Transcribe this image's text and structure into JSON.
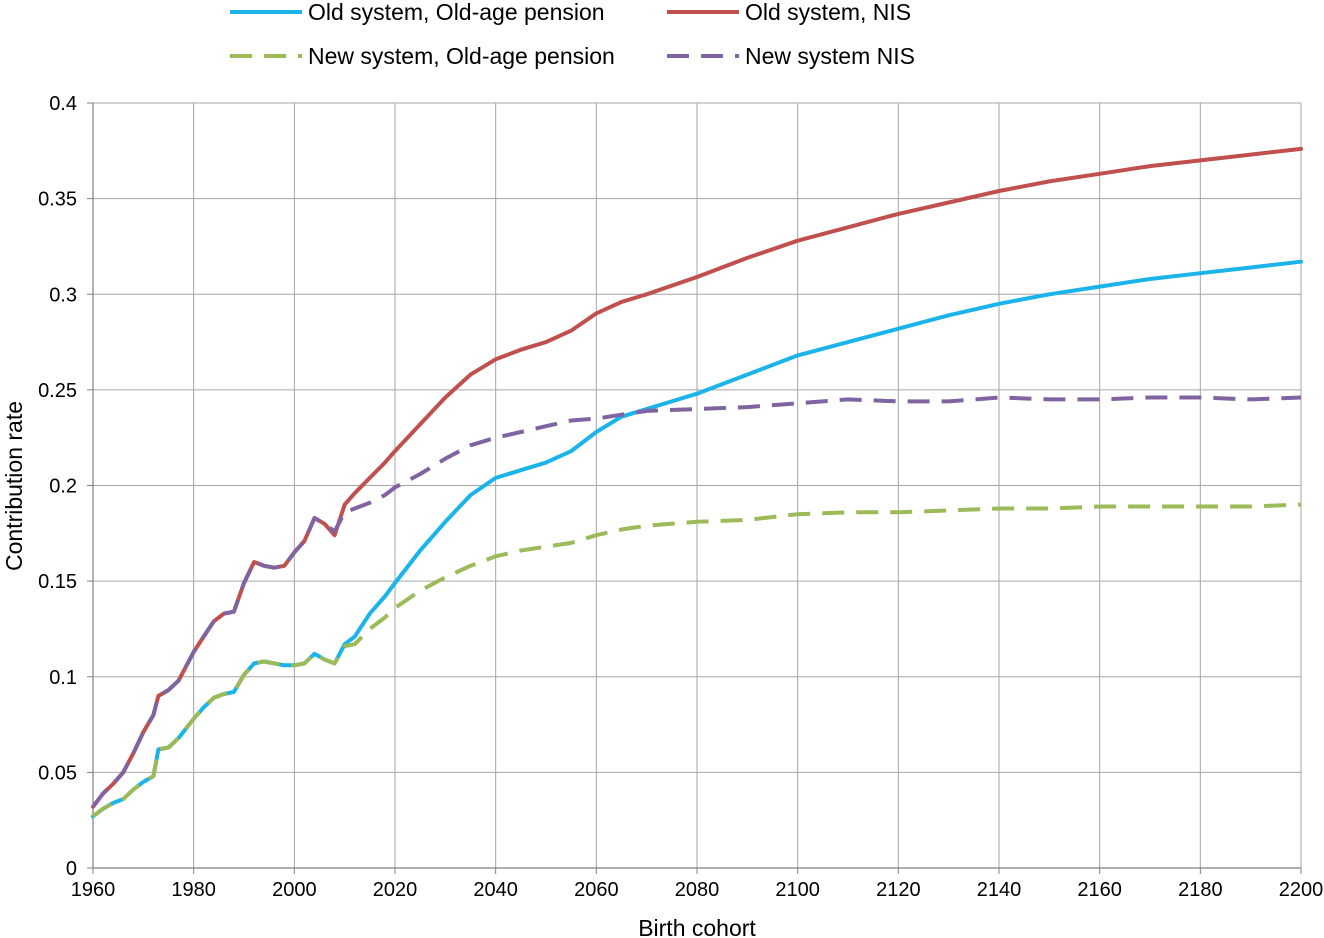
{
  "chart_data": {
    "type": "line",
    "xlabel": "Birth cohort",
    "ylabel": "Contribution rate",
    "xlim": [
      1960,
      2200
    ],
    "ylim": [
      0,
      0.4
    ],
    "x_ticks": [
      1960,
      1980,
      2000,
      2020,
      2040,
      2060,
      2080,
      2100,
      2120,
      2140,
      2160,
      2180,
      2200
    ],
    "y_ticks": [
      0,
      0.05,
      0.1,
      0.15,
      0.2,
      0.25,
      0.3,
      0.35,
      0.4
    ],
    "y_tick_labels": [
      "0",
      "0.05",
      "0.1",
      "0.15",
      "0.2",
      "0.25",
      "0.3",
      "0.35",
      "0.4"
    ],
    "grid": true,
    "legend_position": "top",
    "series": [
      {
        "name": "Old system, Old-age pension",
        "color": "#1ab3ea",
        "dash": "solid",
        "points": [
          [
            1960,
            0.027
          ],
          [
            1962,
            0.031
          ],
          [
            1964,
            0.034
          ],
          [
            1966,
            0.036
          ],
          [
            1968,
            0.041
          ],
          [
            1970,
            0.045
          ],
          [
            1972,
            0.048
          ],
          [
            1973,
            0.062
          ],
          [
            1975,
            0.063
          ],
          [
            1977,
            0.068
          ],
          [
            1980,
            0.078
          ],
          [
            1982,
            0.084
          ],
          [
            1984,
            0.089
          ],
          [
            1986,
            0.091
          ],
          [
            1988,
            0.092
          ],
          [
            1990,
            0.101
          ],
          [
            1992,
            0.107
          ],
          [
            1994,
            0.108
          ],
          [
            1996,
            0.107
          ],
          [
            1998,
            0.106
          ],
          [
            2000,
            0.106
          ],
          [
            2002,
            0.107
          ],
          [
            2004,
            0.112
          ],
          [
            2006,
            0.109
          ],
          [
            2008,
            0.107
          ],
          [
            2010,
            0.117
          ],
          [
            2012,
            0.121
          ],
          [
            2015,
            0.133
          ],
          [
            2018,
            0.142
          ],
          [
            2020,
            0.149
          ],
          [
            2025,
            0.166
          ],
          [
            2030,
            0.181
          ],
          [
            2035,
            0.195
          ],
          [
            2040,
            0.204
          ],
          [
            2045,
            0.208
          ],
          [
            2050,
            0.212
          ],
          [
            2055,
            0.218
          ],
          [
            2060,
            0.228
          ],
          [
            2065,
            0.236
          ],
          [
            2070,
            0.24
          ],
          [
            2080,
            0.248
          ],
          [
            2090,
            0.258
          ],
          [
            2100,
            0.268
          ],
          [
            2110,
            0.275
          ],
          [
            2120,
            0.282
          ],
          [
            2130,
            0.289
          ],
          [
            2140,
            0.295
          ],
          [
            2150,
            0.3
          ],
          [
            2160,
            0.304
          ],
          [
            2170,
            0.308
          ],
          [
            2180,
            0.311
          ],
          [
            2190,
            0.314
          ],
          [
            2200,
            0.317
          ]
        ]
      },
      {
        "name": "Old system, NIS",
        "color": "#c0504d",
        "dash": "solid",
        "points": [
          [
            1960,
            0.032
          ],
          [
            1962,
            0.039
          ],
          [
            1964,
            0.044
          ],
          [
            1966,
            0.05
          ],
          [
            1968,
            0.06
          ],
          [
            1970,
            0.071
          ],
          [
            1972,
            0.08
          ],
          [
            1973,
            0.09
          ],
          [
            1975,
            0.093
          ],
          [
            1977,
            0.098
          ],
          [
            1980,
            0.113
          ],
          [
            1982,
            0.121
          ],
          [
            1984,
            0.129
          ],
          [
            1986,
            0.133
          ],
          [
            1988,
            0.134
          ],
          [
            1990,
            0.149
          ],
          [
            1992,
            0.16
          ],
          [
            1994,
            0.158
          ],
          [
            1996,
            0.157
          ],
          [
            1998,
            0.158
          ],
          [
            2000,
            0.165
          ],
          [
            2002,
            0.171
          ],
          [
            2004,
            0.183
          ],
          [
            2006,
            0.18
          ],
          [
            2008,
            0.174
          ],
          [
            2010,
            0.19
          ],
          [
            2012,
            0.196
          ],
          [
            2015,
            0.204
          ],
          [
            2018,
            0.212
          ],
          [
            2020,
            0.218
          ],
          [
            2025,
            0.232
          ],
          [
            2030,
            0.246
          ],
          [
            2035,
            0.258
          ],
          [
            2040,
            0.266
          ],
          [
            2045,
            0.271
          ],
          [
            2050,
            0.275
          ],
          [
            2055,
            0.281
          ],
          [
            2060,
            0.29
          ],
          [
            2065,
            0.296
          ],
          [
            2070,
            0.3
          ],
          [
            2080,
            0.309
          ],
          [
            2090,
            0.319
          ],
          [
            2100,
            0.328
          ],
          [
            2110,
            0.335
          ],
          [
            2120,
            0.342
          ],
          [
            2130,
            0.348
          ],
          [
            2140,
            0.354
          ],
          [
            2150,
            0.359
          ],
          [
            2160,
            0.363
          ],
          [
            2170,
            0.367
          ],
          [
            2180,
            0.37
          ],
          [
            2190,
            0.373
          ],
          [
            2200,
            0.376
          ]
        ]
      },
      {
        "name": "New system, Old-age pension",
        "color": "#9bbb59",
        "dash": "dashed",
        "points": [
          [
            1960,
            0.027
          ],
          [
            1962,
            0.031
          ],
          [
            1964,
            0.034
          ],
          [
            1966,
            0.036
          ],
          [
            1968,
            0.041
          ],
          [
            1970,
            0.045
          ],
          [
            1972,
            0.048
          ],
          [
            1973,
            0.062
          ],
          [
            1975,
            0.063
          ],
          [
            1977,
            0.068
          ],
          [
            1980,
            0.078
          ],
          [
            1982,
            0.084
          ],
          [
            1984,
            0.089
          ],
          [
            1986,
            0.091
          ],
          [
            1988,
            0.092
          ],
          [
            1990,
            0.101
          ],
          [
            1992,
            0.107
          ],
          [
            1994,
            0.108
          ],
          [
            1996,
            0.107
          ],
          [
            1998,
            0.106
          ],
          [
            2000,
            0.106
          ],
          [
            2002,
            0.107
          ],
          [
            2004,
            0.112
          ],
          [
            2006,
            0.109
          ],
          [
            2008,
            0.107
          ],
          [
            2010,
            0.116
          ],
          [
            2012,
            0.117
          ],
          [
            2015,
            0.125
          ],
          [
            2018,
            0.131
          ],
          [
            2020,
            0.136
          ],
          [
            2025,
            0.145
          ],
          [
            2030,
            0.152
          ],
          [
            2035,
            0.158
          ],
          [
            2040,
            0.163
          ],
          [
            2045,
            0.166
          ],
          [
            2050,
            0.168
          ],
          [
            2055,
            0.17
          ],
          [
            2060,
            0.174
          ],
          [
            2065,
            0.177
          ],
          [
            2070,
            0.179
          ],
          [
            2080,
            0.181
          ],
          [
            2090,
            0.182
          ],
          [
            2100,
            0.185
          ],
          [
            2110,
            0.186
          ],
          [
            2120,
            0.186
          ],
          [
            2130,
            0.187
          ],
          [
            2140,
            0.188
          ],
          [
            2150,
            0.188
          ],
          [
            2160,
            0.189
          ],
          [
            2170,
            0.189
          ],
          [
            2180,
            0.189
          ],
          [
            2190,
            0.189
          ],
          [
            2200,
            0.19
          ]
        ]
      },
      {
        "name": "New system NIS",
        "color": "#8064a2",
        "dash": "dashed",
        "points": [
          [
            1960,
            0.032
          ],
          [
            1962,
            0.039
          ],
          [
            1964,
            0.044
          ],
          [
            1966,
            0.05
          ],
          [
            1968,
            0.06
          ],
          [
            1970,
            0.071
          ],
          [
            1972,
            0.08
          ],
          [
            1973,
            0.09
          ],
          [
            1975,
            0.093
          ],
          [
            1977,
            0.098
          ],
          [
            1980,
            0.113
          ],
          [
            1982,
            0.121
          ],
          [
            1984,
            0.129
          ],
          [
            1986,
            0.133
          ],
          [
            1988,
            0.134
          ],
          [
            1990,
            0.149
          ],
          [
            1992,
            0.16
          ],
          [
            1994,
            0.158
          ],
          [
            1996,
            0.157
          ],
          [
            1998,
            0.158
          ],
          [
            2000,
            0.165
          ],
          [
            2002,
            0.171
          ],
          [
            2004,
            0.183
          ],
          [
            2006,
            0.18
          ],
          [
            2008,
            0.176
          ],
          [
            2010,
            0.186
          ],
          [
            2012,
            0.188
          ],
          [
            2015,
            0.191
          ],
          [
            2018,
            0.195
          ],
          [
            2020,
            0.199
          ],
          [
            2025,
            0.206
          ],
          [
            2030,
            0.214
          ],
          [
            2035,
            0.221
          ],
          [
            2040,
            0.225
          ],
          [
            2045,
            0.228
          ],
          [
            2050,
            0.231
          ],
          [
            2055,
            0.234
          ],
          [
            2060,
            0.235
          ],
          [
            2065,
            0.237
          ],
          [
            2070,
            0.239
          ],
          [
            2080,
            0.24
          ],
          [
            2090,
            0.241
          ],
          [
            2100,
            0.243
          ],
          [
            2110,
            0.245
          ],
          [
            2120,
            0.244
          ],
          [
            2130,
            0.244
          ],
          [
            2140,
            0.246
          ],
          [
            2150,
            0.245
          ],
          [
            2160,
            0.245
          ],
          [
            2170,
            0.246
          ],
          [
            2180,
            0.246
          ],
          [
            2190,
            0.245
          ],
          [
            2200,
            0.246
          ]
        ]
      }
    ]
  }
}
